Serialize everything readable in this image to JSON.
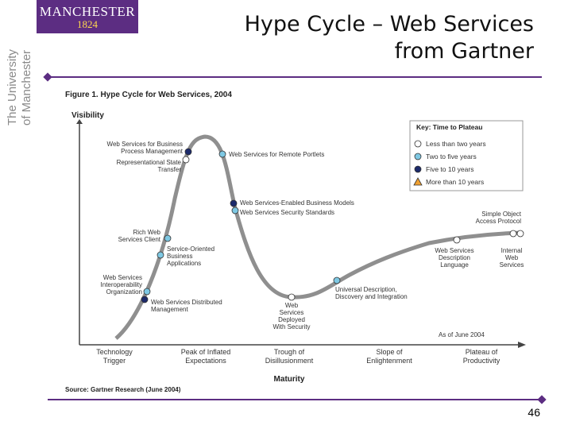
{
  "logo": {
    "name": "MANCHESTER",
    "year": "1824",
    "line1": "The University",
    "line2": "of Manchester"
  },
  "slide": {
    "title_line1": "Hype Cycle – Web Services",
    "title_line2": "from Gartner",
    "page_number": "46"
  },
  "figure": {
    "caption": "Figure 1. Hype Cycle for Web Services, 2004",
    "y_axis": "Visibility",
    "x_axis": "Maturity",
    "source": "Source: Gartner Research (June 2004)",
    "as_of": "As of June 2004",
    "phases": [
      {
        "l1": "Technology",
        "l2": "Trigger"
      },
      {
        "l1": "Peak of Inflated",
        "l2": "Expectations"
      },
      {
        "l1": "Trough of",
        "l2": "Disillusionment"
      },
      {
        "l1": "Slope of",
        "l2": "Enlightenment"
      },
      {
        "l1": "Plateau of",
        "l2": "Productivity"
      }
    ],
    "key": {
      "title": "Key: Time to Plateau",
      "items": [
        {
          "label": "Less than two years",
          "color": "#ffffff"
        },
        {
          "label": "Two to five years",
          "color": "#7ec8e3"
        },
        {
          "label": "Five to 10 years",
          "color": "#1c2a6b"
        },
        {
          "label": "More than 10 years",
          "color": "#f0a030"
        }
      ]
    },
    "points": [
      {
        "lines": [
          "Web Services for Business",
          "Process Management"
        ],
        "color": "#1c2a6b"
      },
      {
        "lines": [
          "Representational State",
          "Transfer"
        ],
        "color": "#ffffff"
      },
      {
        "lines": [
          "Web Services for Remote Portlets"
        ],
        "color": "#7ec8e3"
      },
      {
        "lines": [
          "Web Services-Enabled Business Models"
        ],
        "color": "#1c2a6b"
      },
      {
        "lines": [
          "Web Services Security Standards"
        ],
        "color": "#7ec8e3"
      },
      {
        "lines": [
          "Rich Web",
          "Services Client"
        ],
        "color": "#7ec8e3"
      },
      {
        "lines": [
          "Service-Oriented",
          "Business",
          "Applications"
        ],
        "color": "#7ec8e3"
      },
      {
        "lines": [
          "Web Services",
          "Interoperability",
          "Organization"
        ],
        "color": "#7ec8e3"
      },
      {
        "lines": [
          "Web Services Distributed",
          "Management"
        ],
        "color": "#1c2a6b"
      },
      {
        "lines": [
          "Web",
          "Services",
          "Deployed",
          "With Security"
        ],
        "color": "#ffffff"
      },
      {
        "lines": [
          "Universal Description,",
          "Discovery and Integration"
        ],
        "color": "#7ec8e3"
      },
      {
        "lines": [
          "Web Services",
          "Description",
          "Language"
        ],
        "color": "#ffffff"
      },
      {
        "lines": [
          "Simple Object",
          "Access Protocol"
        ],
        "color": "#ffffff"
      },
      {
        "lines": [
          "Internal",
          "Web",
          "Services"
        ],
        "color": "#ffffff"
      }
    ]
  }
}
